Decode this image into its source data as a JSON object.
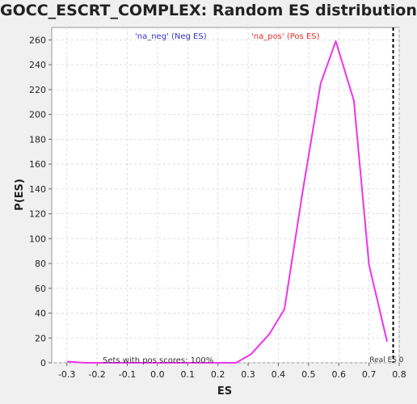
{
  "chart_data": {
    "type": "line",
    "title": "GOCC_ESCRT_COMPLEX: Random ES distribution",
    "xlabel": "ES",
    "ylabel": "P(ES)",
    "xlim": [
      -0.35,
      0.8
    ],
    "ylim": [
      0,
      270
    ],
    "x_ticks": [
      -0.3,
      -0.2,
      -0.1,
      0.0,
      0.1,
      0.2,
      0.3,
      0.4,
      0.5,
      0.6,
      0.7,
      0.8
    ],
    "x_tick_labels": [
      "-0.3",
      "-0.2",
      "-0.1",
      "0.0",
      "0.1",
      "0.2",
      "0.3",
      "0.4",
      "0.5",
      "0.6",
      "0.7",
      "0.8"
    ],
    "y_ticks": [
      0,
      20,
      40,
      60,
      80,
      100,
      120,
      140,
      160,
      180,
      200,
      220,
      240,
      260
    ],
    "y_tick_labels": [
      "0",
      "20",
      "40",
      "60",
      "80",
      "100",
      "120",
      "140",
      "160",
      "180",
      "200",
      "220",
      "240",
      "260"
    ],
    "grid": true,
    "series": [
      {
        "name": "'na_pos' (Pos ES)",
        "color": "#ee33ee",
        "x": [
          -0.3,
          -0.24,
          -0.19,
          -0.14,
          -0.08,
          -0.03,
          0.03,
          0.09,
          0.14,
          0.2,
          0.26,
          0.31,
          0.37,
          0.42,
          0.48,
          0.54,
          0.59,
          0.65,
          0.7,
          0.76
        ],
        "y": [
          1,
          0,
          0,
          0,
          0,
          0,
          0,
          0,
          0,
          0,
          0,
          7,
          23,
          43,
          137,
          225,
          259,
          211,
          79,
          17
        ]
      }
    ],
    "legend": [
      {
        "label": "'na_neg' (Neg ES)",
        "color": "#3333cc"
      },
      {
        "label": "'na_pos' (Pos ES)",
        "color": "#e03030"
      }
    ],
    "real_es": {
      "x": 0.78,
      "label": "Real ES 0"
    },
    "annotation": "Sets with pos scores: 100%"
  }
}
